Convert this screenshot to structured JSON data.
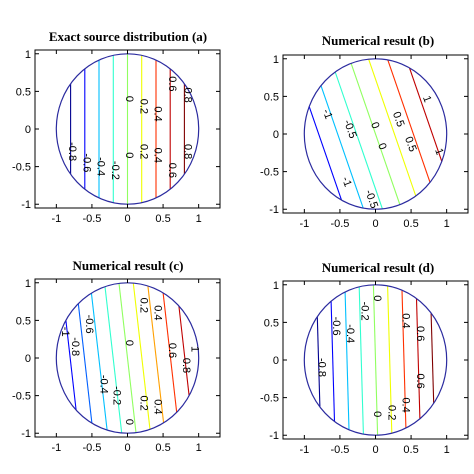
{
  "colors": {
    "circle": "#2b2b9f",
    "colormap": [
      "#00008f",
      "#0000ff",
      "#0060ff",
      "#00c0ff",
      "#30ffcf",
      "#90ff60",
      "#f0ff00",
      "#ffa000",
      "#ff3000",
      "#c00000",
      "#800000"
    ]
  },
  "chart_data": [
    {
      "type": "contour",
      "title": "Exact source distribution (a)",
      "xlim": [
        -1.3,
        1.3
      ],
      "ylim": [
        -1.05,
        1.05
      ],
      "xticks": [
        -1,
        -0.5,
        0,
        0.5,
        1
      ],
      "yticks": [
        1,
        0.5,
        0,
        -0.5,
        -1
      ],
      "xtick_labels": [
        "-1",
        "-0.5",
        "0",
        "0.5",
        "1"
      ],
      "ytick_labels": [
        "1",
        "0.5",
        "0",
        "-0.5",
        "-1"
      ],
      "domain": "unit disk",
      "field": "u = x",
      "levels": [
        -0.8,
        -0.6,
        -0.4,
        -0.2,
        0,
        0.2,
        0.4,
        0.6,
        0.8
      ],
      "labels": [
        {
          "text": "-0.8",
          "x": -0.82,
          "y": -0.3
        },
        {
          "text": "-0.6",
          "x": -0.62,
          "y": -0.45
        },
        {
          "text": "-0.4",
          "x": -0.42,
          "y": -0.5
        },
        {
          "text": "-0.2",
          "x": -0.22,
          "y": -0.55
        },
        {
          "text": "0",
          "x": -0.02,
          "y": 0.4
        },
        {
          "text": "0.2",
          "x": 0.18,
          "y": 0.3
        },
        {
          "text": "0.4",
          "x": 0.38,
          "y": 0.2
        },
        {
          "text": "0.6",
          "x": 0.58,
          "y": 0.6
        },
        {
          "text": "0.8",
          "x": 0.8,
          "y": 0.45
        },
        {
          "text": "0",
          "x": -0.02,
          "y": -0.35
        },
        {
          "text": "0.2",
          "x": 0.18,
          "y": -0.3
        },
        {
          "text": "0.4",
          "x": 0.38,
          "y": -0.35
        },
        {
          "text": "0.6",
          "x": 0.58,
          "y": -0.55
        },
        {
          "text": "0.8",
          "x": 0.8,
          "y": -0.3
        }
      ]
    },
    {
      "type": "contour",
      "title": "Numerical result (b)",
      "xlim": [
        -1.3,
        1.3
      ],
      "ylim": [
        -1.05,
        1.05
      ],
      "xticks": [
        -1,
        -0.5,
        0,
        0.5,
        1
      ],
      "yticks": [
        1,
        0.5,
        0,
        -0.5,
        -1
      ],
      "xtick_labels": [
        "-1",
        "-0.5",
        "0",
        "0.5",
        "1"
      ],
      "ytick_labels": [
        "1",
        "0.5",
        "0",
        "-0.5",
        "-1"
      ],
      "domain": "unit disk",
      "field": "u = x rotated",
      "levels": [
        -1,
        -0.75,
        -0.5,
        -0.25,
        0,
        0.25,
        0.5,
        0.75,
        1
      ],
      "labels": [
        {
          "text": "-1",
          "x": -0.72,
          "y": 0.25
        },
        {
          "text": "-1",
          "x": -0.45,
          "y": -0.65
        },
        {
          "text": "-0.5",
          "x": -0.4,
          "y": 0.05
        },
        {
          "text": "-0.5",
          "x": -0.1,
          "y": -0.88
        },
        {
          "text": "0",
          "x": -0.05,
          "y": 0.1
        },
        {
          "text": "0",
          "x": 0.05,
          "y": -0.18
        },
        {
          "text": "0.5",
          "x": 0.28,
          "y": 0.18
        },
        {
          "text": "0.5",
          "x": 0.45,
          "y": -0.15
        },
        {
          "text": "1",
          "x": 0.68,
          "y": 0.45
        },
        {
          "text": "1",
          "x": 0.85,
          "y": -0.25
        }
      ]
    },
    {
      "type": "contour",
      "title": "Numerical result (c)",
      "xlim": [
        -1.3,
        1.3
      ],
      "ylim": [
        -1.05,
        1.05
      ],
      "xticks": [
        -1,
        -0.5,
        0,
        0.5,
        1
      ],
      "yticks": [
        1,
        0.5,
        0,
        -0.5,
        -1
      ],
      "xtick_labels": [
        "-1",
        "-0.5",
        "0",
        "0.5",
        "1"
      ],
      "ytick_labels": [
        "1",
        "0.5",
        "0",
        "-0.5",
        "-1"
      ],
      "domain": "unit disk",
      "field": "u = x",
      "levels": [
        -1,
        -0.8,
        -0.6,
        -0.4,
        -0.2,
        0,
        0.2,
        0.4,
        0.6,
        0.8,
        1
      ],
      "labels": [
        {
          "text": "-1",
          "x": -0.92,
          "y": 0.35
        },
        {
          "text": "-0.8",
          "x": -0.78,
          "y": 0.15
        },
        {
          "text": "-0.6",
          "x": -0.58,
          "y": 0.45
        },
        {
          "text": "-0.4",
          "x": -0.38,
          "y": -0.35
        },
        {
          "text": "-0.2",
          "x": -0.2,
          "y": -0.5
        },
        {
          "text": "0",
          "x": -0.02,
          "y": 0.2
        },
        {
          "text": "0",
          "x": -0.02,
          "y": -0.85
        },
        {
          "text": "0.2",
          "x": 0.18,
          "y": 0.7
        },
        {
          "text": "0.2",
          "x": 0.18,
          "y": -0.6
        },
        {
          "text": "0.4",
          "x": 0.38,
          "y": 0.6
        },
        {
          "text": "0.4",
          "x": 0.38,
          "y": -0.65
        },
        {
          "text": "0.6",
          "x": 0.58,
          "y": 0.1
        },
        {
          "text": "0.8",
          "x": 0.78,
          "y": -0.1
        },
        {
          "text": "1",
          "x": 0.9,
          "y": 0.12
        }
      ]
    },
    {
      "type": "contour",
      "title": "Numerical result (d)",
      "xlim": [
        -1.3,
        1.3
      ],
      "ylim": [
        -1.05,
        1.05
      ],
      "xticks": [
        -1,
        -0.5,
        0,
        0.5,
        1
      ],
      "yticks": [
        1,
        0.5,
        0,
        -0.5,
        -1
      ],
      "xtick_labels": [
        "-1",
        "-0.5",
        "0",
        "0.5",
        "1"
      ],
      "ytick_labels": [
        "1",
        "0.5",
        "0",
        "-0.5",
        "-1"
      ],
      "domain": "unit disk",
      "field": "u = x",
      "levels": [
        -0.8,
        -0.6,
        -0.4,
        -0.2,
        0,
        0.2,
        0.4,
        0.6,
        0.8
      ],
      "labels": [
        {
          "text": "-0.8",
          "x": -0.8,
          "y": -0.1
        },
        {
          "text": "-0.6",
          "x": -0.6,
          "y": 0.45
        },
        {
          "text": "-0.4",
          "x": -0.4,
          "y": 0.35
        },
        {
          "text": "-0.2",
          "x": -0.2,
          "y": 0.65
        },
        {
          "text": "0",
          "x": -0.02,
          "y": 0.82
        },
        {
          "text": "0",
          "x": -0.02,
          "y": -0.72
        },
        {
          "text": "0.2",
          "x": 0.18,
          "y": -0.7
        },
        {
          "text": "0.4",
          "x": 0.38,
          "y": 0.52
        },
        {
          "text": "0.4",
          "x": 0.38,
          "y": -0.6
        },
        {
          "text": "0.6",
          "x": 0.58,
          "y": 0.35
        },
        {
          "text": "0.6",
          "x": 0.58,
          "y": -0.28
        }
      ]
    }
  ]
}
